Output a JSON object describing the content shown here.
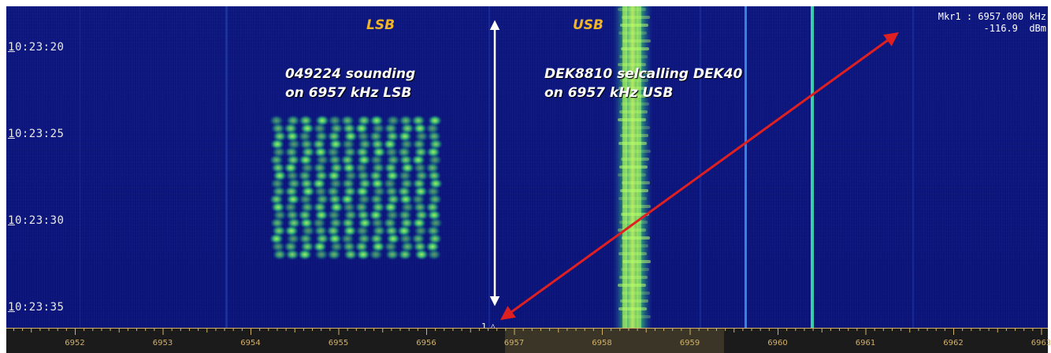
{
  "waterfall": {
    "time_labels": [
      {
        "underlined": "1",
        "rest": "0:23:20"
      },
      {
        "underlined": "1",
        "rest": "0:23:25"
      },
      {
        "underlined": "1",
        "rest": "0:23:30"
      },
      {
        "underlined": "1",
        "rest": "0:23:35"
      }
    ],
    "sideband_lsb": "LSB",
    "sideband_usb": "USB",
    "annotation_left": {
      "line1": "049224 sounding",
      "line2": "on 6957 kHz LSB"
    },
    "annotation_right": {
      "line1": "DEK8810 selcalling DEK40",
      "line2": "on 6957 kHz USB"
    },
    "marker": {
      "readout_line1": "Mkr1 : 6957.000 kHz",
      "readout_line2": "-116.9  dBm",
      "symbol": "1 △"
    },
    "background_color": "#0c157d",
    "signal_color": "#3fd36a",
    "arrow_color": "#e02020",
    "sideband_label_color": "#f0b428"
  },
  "axis": {
    "frequencies": [
      "6952",
      "6953",
      "6954",
      "6955",
      "6956",
      "6957",
      "6958",
      "6959",
      "6960",
      "6961",
      "6962",
      "6963"
    ],
    "unit": "kHz",
    "label_color": "#d2b16a"
  }
}
